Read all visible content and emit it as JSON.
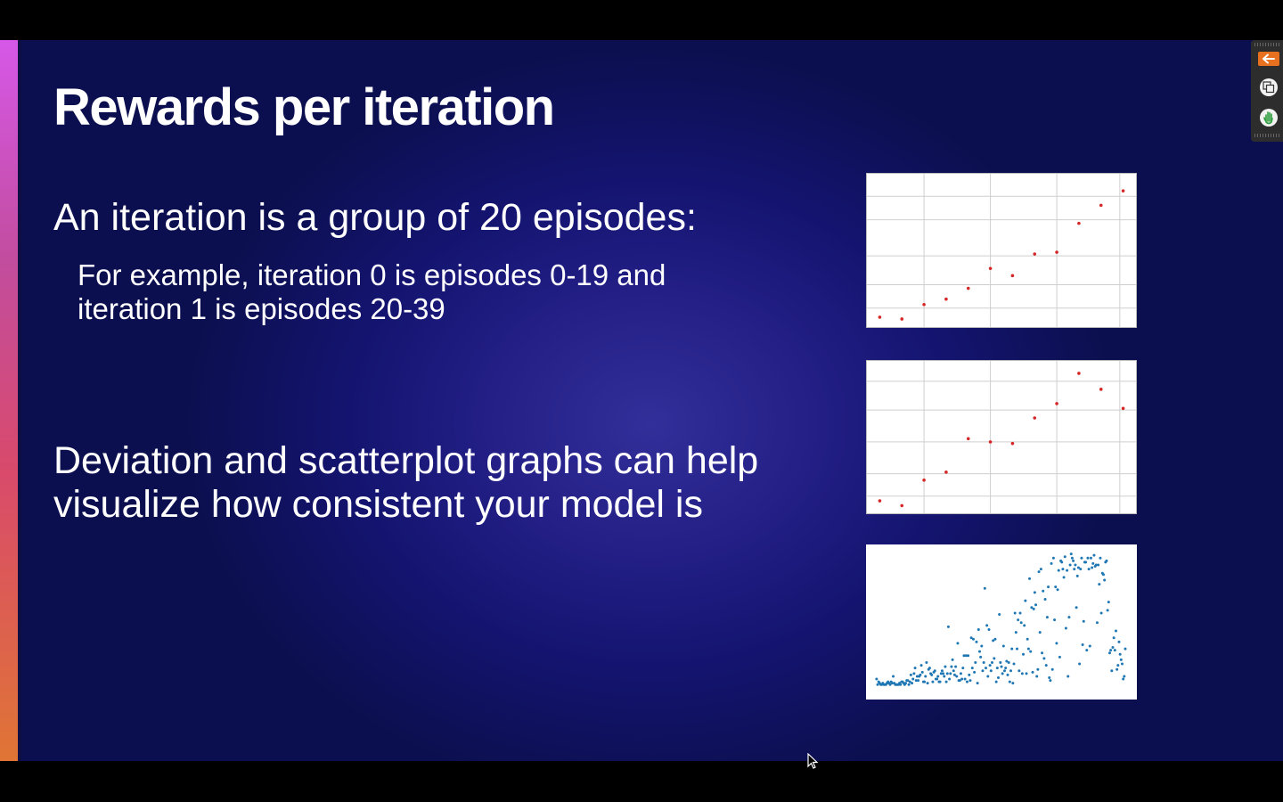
{
  "slide": {
    "title": "Rewards per iteration",
    "point1": "An iteration is a group of 20 episodes:",
    "sub1_line1": "For example, iteration 0 is episodes 0-19 and",
    "sub1_line2": "iteration 1 is episodes 20-39",
    "point2_line1": "Deviation and scatterplot graphs can help",
    "point2_line2": "visualize how consistent your model is"
  },
  "toolbar": {
    "icons": [
      "arrow-left-icon",
      "copy-icon",
      "hand-icon"
    ],
    "accent_color": "#e8711f"
  },
  "colors": {
    "accent_top": "#d658e8",
    "accent_bottom": "#e07535",
    "point_red": "#d62728",
    "point_blue": "#1f77b4"
  },
  "chart_data": [
    {
      "type": "scatter",
      "title": "",
      "x": [
        0,
        1,
        2,
        3,
        4,
        5,
        6,
        7,
        8,
        9,
        10,
        11
      ],
      "y": [
        3,
        2,
        10,
        13,
        19,
        30,
        26,
        38,
        39,
        55,
        65,
        73
      ],
      "xlim": [
        -0.5,
        11.5
      ],
      "ylim": [
        0,
        80
      ],
      "grid": true
    },
    {
      "type": "scatter",
      "title": "",
      "x": [
        0,
        1,
        2,
        3,
        4,
        5,
        6,
        7,
        8,
        9,
        10,
        11
      ],
      "y": [
        5,
        2,
        18,
        23,
        44,
        42,
        41,
        57,
        66,
        85,
        75,
        63
      ],
      "xlim": [
        -0.5,
        11.5
      ],
      "ylim": [
        0,
        90
      ],
      "grid": true
    },
    {
      "type": "scatter",
      "title": "",
      "x": [
        0,
        1,
        2,
        3,
        4,
        5,
        6,
        7,
        8,
        9,
        10,
        11,
        12,
        13,
        14,
        15,
        16,
        17,
        18,
        19,
        20,
        21,
        22,
        23,
        24,
        25,
        26,
        27,
        28,
        29,
        30,
        31,
        32,
        33,
        34,
        35,
        36,
        37,
        38,
        39,
        40,
        41,
        42,
        43,
        44,
        45,
        46,
        47,
        48,
        49,
        50,
        51,
        52,
        53,
        54,
        55,
        56,
        57,
        58,
        59,
        60,
        61,
        62,
        63,
        64,
        65,
        66,
        67,
        68,
        69,
        70,
        71,
        72,
        73,
        74,
        75,
        76,
        77,
        78,
        79,
        80,
        81,
        82,
        83,
        84,
        85,
        86,
        87,
        88,
        89,
        90,
        91,
        92,
        93,
        94,
        95,
        96,
        97,
        98,
        99,
        100,
        101,
        102,
        103,
        104,
        105,
        106,
        107,
        108,
        109,
        110,
        111,
        112,
        113,
        114,
        115,
        116,
        117,
        118,
        119,
        120,
        121,
        122,
        123,
        124,
        125,
        126,
        127,
        128,
        129,
        130,
        131,
        132,
        133,
        134,
        135,
        136,
        137,
        138,
        139,
        140,
        141,
        142,
        143,
        144,
        145,
        146,
        147,
        148,
        149,
        150,
        151,
        152,
        153,
        154,
        155,
        156,
        157,
        158,
        159,
        160,
        161,
        162,
        163,
        164,
        165,
        166,
        167,
        168,
        169,
        170,
        171,
        172,
        173,
        174,
        175,
        176,
        177,
        178,
        179,
        180,
        181,
        182,
        183,
        184,
        185,
        186,
        187,
        188,
        189,
        190,
        191,
        192,
        193,
        194,
        195,
        196,
        197,
        198,
        199,
        200,
        201,
        202,
        203,
        204,
        205,
        206,
        207,
        208,
        209,
        210,
        211,
        212,
        213,
        214,
        215,
        216,
        217,
        218,
        219,
        220,
        221,
        222,
        223,
        224,
        225,
        226,
        227,
        228,
        229,
        230,
        231,
        232,
        233,
        234,
        235,
        236,
        237,
        238,
        239
      ],
      "y": [
        6,
        2,
        4,
        3,
        2,
        2,
        3,
        2,
        2,
        2,
        3,
        4,
        3,
        2,
        4,
        3,
        8,
        3,
        2,
        2,
        2,
        2,
        3,
        2,
        4,
        4,
        3,
        2,
        3,
        5,
        5,
        2,
        4,
        9,
        3,
        6,
        10,
        14,
        5,
        8,
        5,
        8,
        9,
        16,
        11,
        4,
        4,
        8,
        18,
        3,
        13,
        14,
        10,
        9,
        4,
        11,
        12,
        6,
        6,
        8,
        4,
        4,
        10,
        12,
        10,
        8,
        15,
        4,
        10,
        44,
        6,
        10,
        15,
        20,
        12,
        9,
        15,
        8,
        32,
        5,
        5,
        10,
        6,
        14,
        23,
        6,
        23,
        4,
        23,
        9,
        5,
        36,
        14,
        35,
        11,
        18,
        33,
        3,
        42,
        26,
        22,
        30,
        12,
        18,
        72,
        14,
        45,
        8,
        42,
        16,
        12,
        18,
        34,
        21,
        35,
        4,
        14,
        7,
        53,
        18,
        15,
        10,
        30,
        12,
        14,
        19,
        9,
        18,
        4,
        12,
        28,
        3,
        17,
        54,
        40,
        28,
        49,
        12,
        54,
        47,
        10,
        24,
        45,
        63,
        10,
        35,
        28,
        79,
        26,
        58,
        11,
        57,
        69,
        60,
        8,
        13,
        84,
        40,
        86,
        25,
        70,
        21,
        64,
        16,
        51,
        73,
        7,
        5,
        90,
        13,
        94,
        49,
        73,
        32,
        71,
        85,
        22,
        92,
        91,
        86,
        80,
        95,
        43,
        85,
        8,
        51,
        89,
        97,
        94,
        92,
        86,
        89,
        58,
        81,
        87,
        17,
        86,
        94,
        31,
        48,
        91,
        91,
        27,
        94,
        86,
        30,
        94,
        87,
        90,
        96,
        88,
        89,
        47,
        89,
        75,
        94,
        54,
        83,
        82,
        78,
        91,
        92,
        56,
        62,
        25,
        27,
        12,
        29,
        36,
        27,
        41,
        13,
        16,
        33,
        24,
        20,
        17,
        6,
        8,
        28
      ],
      "xlim": [
        -5,
        245
      ],
      "ylim": [
        -5,
        100
      ],
      "grid": false
    }
  ]
}
